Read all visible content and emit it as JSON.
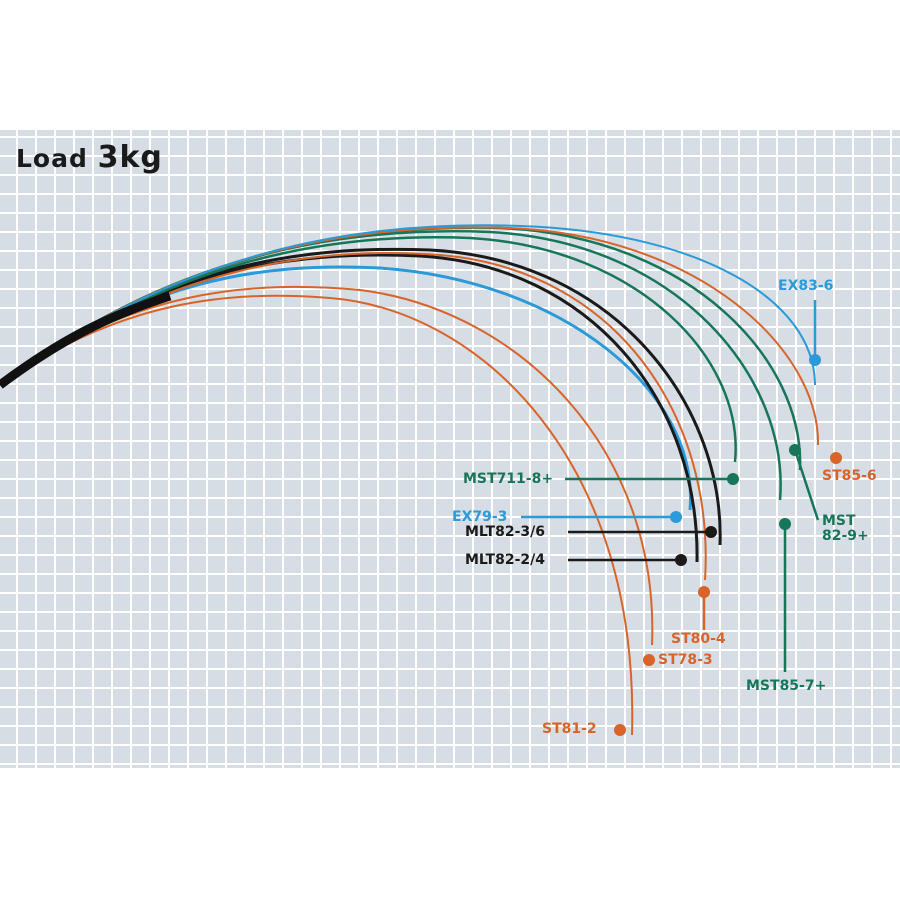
{
  "title": {
    "prefix": "Load",
    "value": "3kg"
  },
  "colors": {
    "red": "#d8642a",
    "blue": "#2a9ad8",
    "green": "#17765a",
    "black": "#1a1a1a"
  },
  "labels": {
    "ex83_6": "EX83-6",
    "st85_6": "ST85-6",
    "mst82_9_line1": "MST",
    "mst82_9_line2": "82-9+",
    "mst711_8": "MST711-8+",
    "ex79_3": "EX79-3",
    "mlt82_3_6": "MLT82-3/6",
    "mlt82_2_4": "MLT82-2/4",
    "st80_4": "ST80-4",
    "st78_3": "ST78-3",
    "mst85_7": "MST85-7+",
    "st81_2": "ST81-2"
  }
}
